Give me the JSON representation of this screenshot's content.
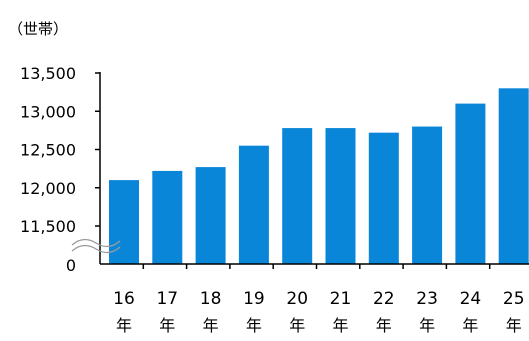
{
  "chart_data": {
    "type": "bar",
    "unit_label": "（世帯）",
    "categories": [
      {
        "num": "16",
        "suffix": "年"
      },
      {
        "num": "17",
        "suffix": "年"
      },
      {
        "num": "18",
        "suffix": "年"
      },
      {
        "num": "19",
        "suffix": "年"
      },
      {
        "num": "20",
        "suffix": "年"
      },
      {
        "num": "21",
        "suffix": "年"
      },
      {
        "num": "22",
        "suffix": "年"
      },
      {
        "num": "23",
        "suffix": "年"
      },
      {
        "num": "24",
        "suffix": "年"
      },
      {
        "num": "25",
        "suffix": "年"
      }
    ],
    "values": [
      12100,
      12220,
      12270,
      12550,
      12780,
      12780,
      12720,
      12800,
      13100,
      13300
    ],
    "yticks": [
      "13,500",
      "13,000",
      "12,500",
      "12,000",
      "11,500"
    ],
    "ytick_values": [
      13500,
      13000,
      12500,
      12000,
      11500
    ],
    "zero_label": "0",
    "axis_break": true,
    "ylim": [
      11500,
      13500
    ],
    "bar_color": "#0a86d8",
    "axis_color": "#000000"
  }
}
